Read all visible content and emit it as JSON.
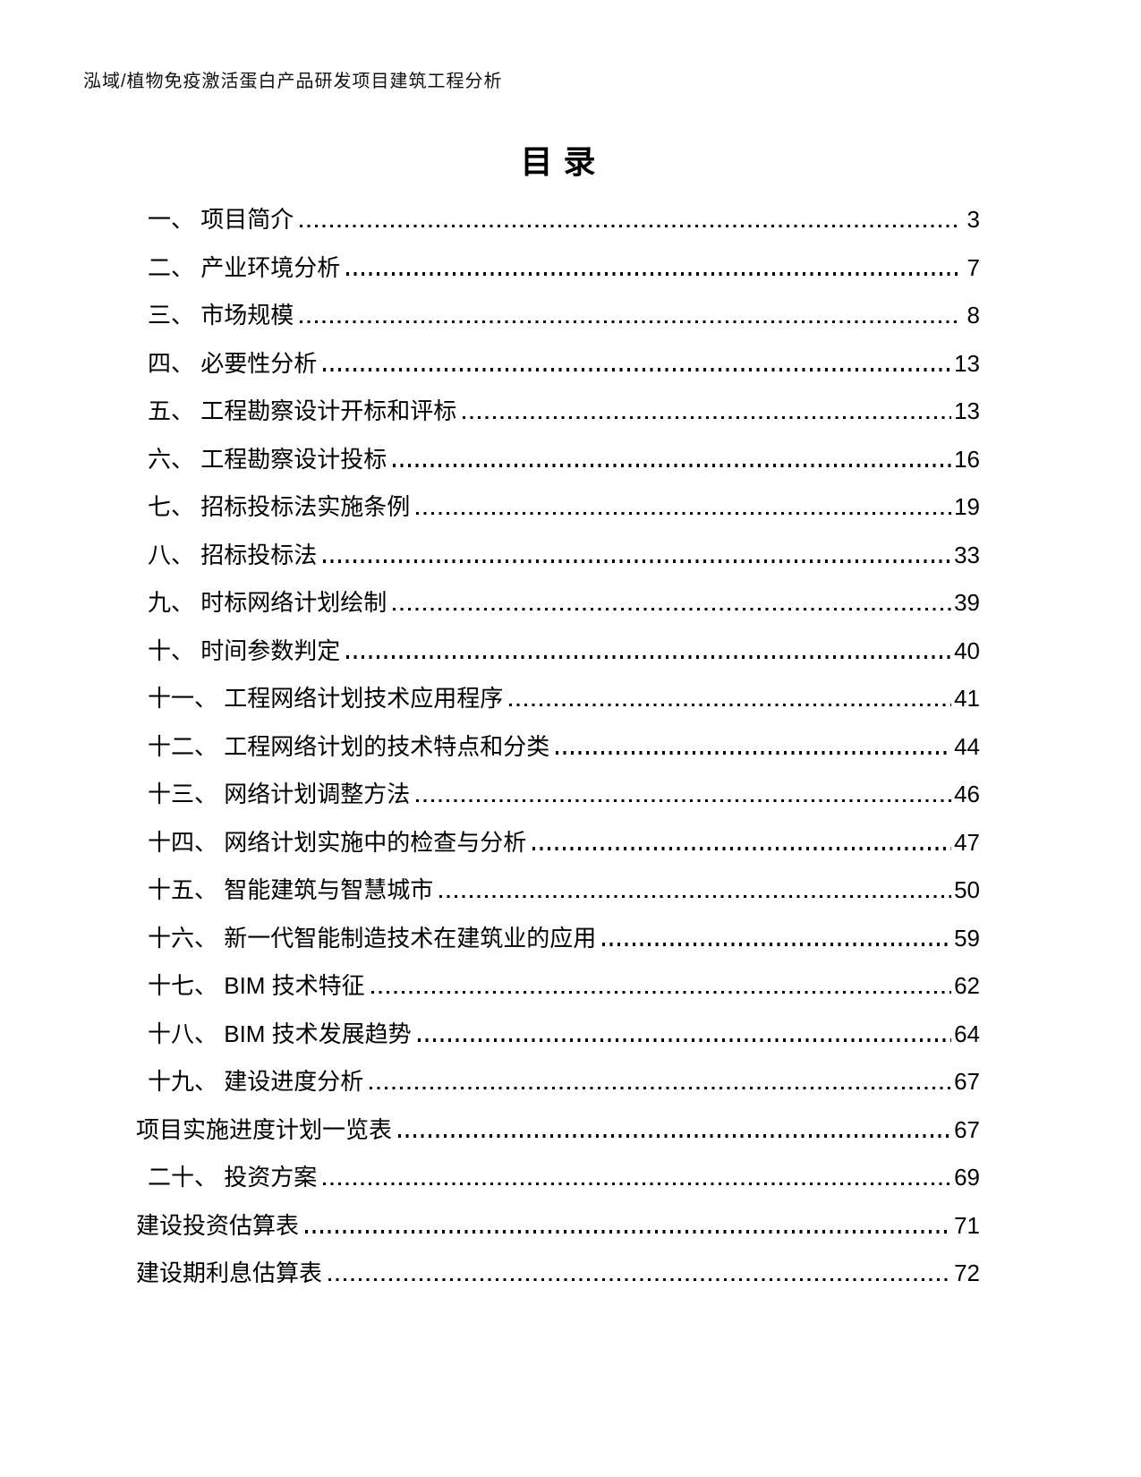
{
  "header": "泓域/植物免疫激活蛋白产品研发项目建筑工程分析",
  "title": "目录",
  "toc": [
    {
      "label": "一、 项目简介",
      "page": "3",
      "numbered": true
    },
    {
      "label": "二、 产业环境分析",
      "page": "7",
      "numbered": true
    },
    {
      "label": "三、 市场规模",
      "page": "8",
      "numbered": true
    },
    {
      "label": "四、 必要性分析",
      "page": "13",
      "numbered": true
    },
    {
      "label": "五、 工程勘察设计开标和评标",
      "page": "13",
      "numbered": true
    },
    {
      "label": "六、 工程勘察设计投标",
      "page": "16",
      "numbered": true
    },
    {
      "label": "七、 招标投标法实施条例",
      "page": "19",
      "numbered": true
    },
    {
      "label": "八、 招标投标法",
      "page": "33",
      "numbered": true
    },
    {
      "label": "九、 时标网络计划绘制",
      "page": "39",
      "numbered": true
    },
    {
      "label": "十、 时间参数判定",
      "page": "40",
      "numbered": true
    },
    {
      "label": "十一、 工程网络计划技术应用程序",
      "page": "41",
      "numbered": true
    },
    {
      "label": "十二、 工程网络计划的技术特点和分类",
      "page": "44",
      "numbered": true
    },
    {
      "label": "十三、 网络计划调整方法",
      "page": "46",
      "numbered": true
    },
    {
      "label": "十四、 网络计划实施中的检查与分析",
      "page": "47",
      "numbered": true
    },
    {
      "label": "十五、 智能建筑与智慧城市",
      "page": "50",
      "numbered": true
    },
    {
      "label": "十六、 新一代智能制造技术在建筑业的应用",
      "page": "59",
      "numbered": true
    },
    {
      "label": "十七、 BIM 技术特征",
      "page": "62",
      "numbered": true
    },
    {
      "label": "十八、 BIM 技术发展趋势",
      "page": "64",
      "numbered": true
    },
    {
      "label": "十九、 建设进度分析",
      "page": "67",
      "numbered": true
    },
    {
      "label": "项目实施进度计划一览表",
      "page": "67",
      "numbered": false
    },
    {
      "label": "二十、 投资方案",
      "page": "69",
      "numbered": true
    },
    {
      "label": "建设投资估算表",
      "page": "71",
      "numbered": false
    },
    {
      "label": "建设期利息估算表",
      "page": "72",
      "numbered": false
    }
  ]
}
